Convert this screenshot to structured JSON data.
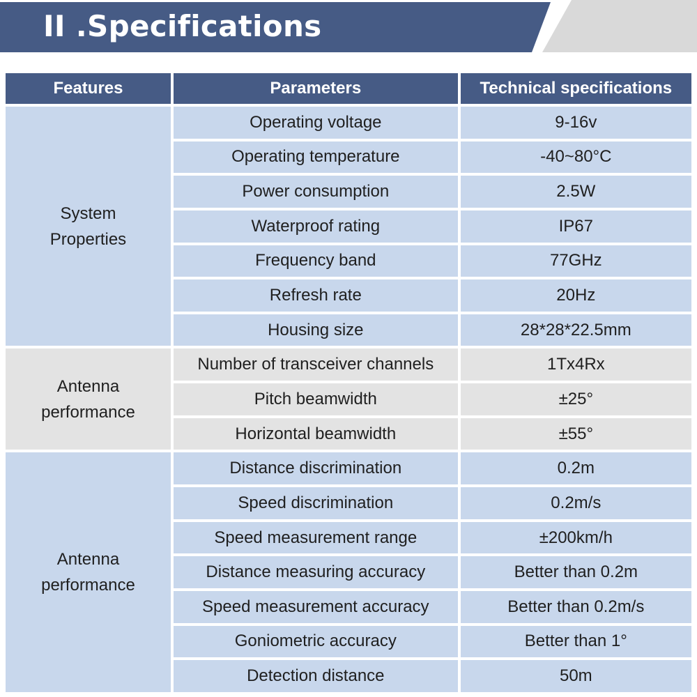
{
  "banner": {
    "title": "II .Specifications",
    "colors": {
      "primary": "#465b85",
      "secondary": "#d9d9d9"
    }
  },
  "table": {
    "headers": [
      "Features",
      "Parameters",
      "Technical specifications"
    ],
    "colors": {
      "header": "#465b85",
      "blue_row": "#c8d7ec",
      "gray_row": "#e3e3e3"
    },
    "groups": [
      {
        "feature": "System\nProperties",
        "tone": "blue",
        "rows": [
          {
            "parameter": "Operating voltage",
            "value": "9-16v"
          },
          {
            "parameter": "Operating temperature",
            "value": "-40~80°C"
          },
          {
            "parameter": "Power consumption",
            "value": "2.5W"
          },
          {
            "parameter": "Waterproof rating",
            "value": "IP67"
          },
          {
            "parameter": "Frequency band",
            "value": "77GHz"
          },
          {
            "parameter": "Refresh rate",
            "value": "20Hz"
          },
          {
            "parameter": "Housing size",
            "value": "28*28*22.5mm"
          }
        ]
      },
      {
        "feature": "Antenna\nperformance",
        "tone": "gray",
        "rows": [
          {
            "parameter": "Number of transceiver channels",
            "value": "1Tx4Rx"
          },
          {
            "parameter": "Pitch beamwidth",
            "value": "±25°"
          },
          {
            "parameter": "Horizontal beamwidth",
            "value": "±55°"
          }
        ]
      },
      {
        "feature": "Antenna\nperformance",
        "tone": "blue",
        "rows": [
          {
            "parameter": "Distance discrimination",
            "value": "0.2m"
          },
          {
            "parameter": "Speed discrimination",
            "value": "0.2m/s"
          },
          {
            "parameter": "Speed measurement range",
            "value": "±200km/h"
          },
          {
            "parameter": "Distance measuring accuracy",
            "value": "Better than 0.2m"
          },
          {
            "parameter": "Speed measurement accuracy",
            "value": "Better than 0.2m/s"
          },
          {
            "parameter": "Goniometric accuracy",
            "value": "Better than 1°"
          },
          {
            "parameter": "Detection distance",
            "value": "50m"
          }
        ]
      }
    ]
  }
}
